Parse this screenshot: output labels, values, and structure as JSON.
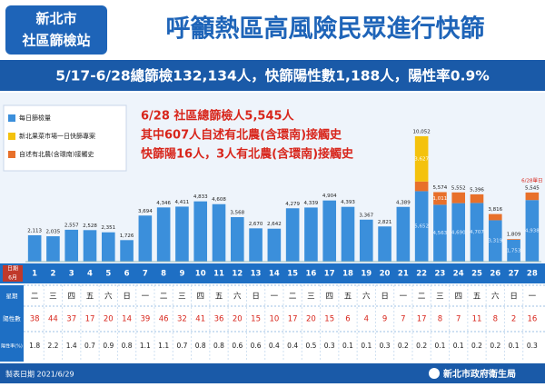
{
  "chart_data": {
    "type": "bar",
    "logo": [
      "新北市",
      "社區篩檢站"
    ],
    "title": "呼籲熱區高風險民眾進行快篩",
    "subtitle": "5/17-6/28總篩檢132,134人，快篩陽性數1,188人，陽性率0.9%",
    "annotations": [
      "6/28 社區總篩檢人5,545人",
      "其中607人自述有北農(含環南)接觸史",
      "快篩陽16人，3人有北農(含環南)接觸史"
    ],
    "last_day_note": "6/28單日",
    "month": "6月",
    "row_labels": [
      "日期",
      "星期",
      "陽性數",
      "陽性率(%)"
    ],
    "categories": [
      "1",
      "2",
      "3",
      "4",
      "5",
      "6",
      "7",
      "8",
      "9",
      "10",
      "11",
      "12",
      "13",
      "14",
      "15",
      "16",
      "17",
      "18",
      "19",
      "20",
      "21",
      "22",
      "23",
      "24",
      "25",
      "26",
      "27",
      "28"
    ],
    "weekdays": [
      "二",
      "三",
      "四",
      "五",
      "六",
      "日",
      "一",
      "二",
      "三",
      "四",
      "五",
      "六",
      "日",
      "一",
      "二",
      "三",
      "四",
      "五",
      "六",
      "日",
      "一",
      "二",
      "三",
      "四",
      "五",
      "六",
      "日",
      "一"
    ],
    "positives": [
      38,
      44,
      37,
      17,
      20,
      14,
      39,
      46,
      32,
      41,
      36,
      20,
      15,
      10,
      17,
      20,
      15,
      6,
      4,
      9,
      7,
      17,
      8,
      7,
      11,
      8,
      2,
      16
    ],
    "rates": [
      1.8,
      2.2,
      1.4,
      0.7,
      0.9,
      0.8,
      1.1,
      1.1,
      0.7,
      0.8,
      0.8,
      0.6,
      0.6,
      0.4,
      0.4,
      0.5,
      0.3,
      0.1,
      0.1,
      0.3,
      0.2,
      0.2,
      0.1,
      0.1,
      0.2,
      0.2,
      0.1,
      0.3
    ],
    "series": [
      {
        "name": "每日篩檢量",
        "color": "#3b8fdb",
        "values": [
          2113,
          2035,
          2557,
          2528,
          2351,
          1726,
          3694,
          4346,
          4411,
          4833,
          4608,
          3568,
          2670,
          2642,
          4279,
          4339,
          4904,
          4393,
          3367,
          2821,
          4389,
          5652,
          4563,
          4690,
          4707,
          3319,
          1753,
          4938
        ],
        "value_labels": [
          null,
          null,
          null,
          null,
          null,
          null,
          null,
          null,
          null,
          null,
          null,
          null,
          null,
          null,
          null,
          null,
          null,
          null,
          null,
          null,
          null,
          "5,652",
          "4,563",
          "4,690",
          "4,707",
          "3,319",
          "1,753",
          "4,938"
        ]
      },
      {
        "name": "新北果菜市場一日快篩專案",
        "color": "#f4c20d",
        "values": [
          null,
          null,
          null,
          null,
          null,
          null,
          null,
          null,
          null,
          null,
          null,
          null,
          null,
          null,
          null,
          null,
          null,
          null,
          null,
          null,
          null,
          3627,
          null,
          null,
          null,
          null,
          null,
          null
        ],
        "value_labels": [
          null,
          null,
          null,
          null,
          null,
          null,
          null,
          null,
          null,
          null,
          null,
          null,
          null,
          null,
          null,
          null,
          null,
          null,
          null,
          null,
          null,
          "3,627",
          null,
          null,
          null,
          null,
          null,
          null
        ]
      },
      {
        "name": "自述有北農(含環南)接觸史",
        "color": "#e8702a",
        "values": [
          null,
          null,
          null,
          null,
          null,
          null,
          null,
          null,
          null,
          null,
          null,
          null,
          null,
          null,
          null,
          null,
          null,
          null,
          null,
          null,
          null,
          773,
          1011,
          862,
          689,
          497,
          56,
          607
        ],
        "value_labels": [
          null,
          null,
          null,
          null,
          null,
          null,
          null,
          null,
          null,
          null,
          null,
          null,
          null,
          null,
          null,
          null,
          null,
          null,
          null,
          null,
          null,
          null,
          "1,011",
          null,
          null,
          null,
          null,
          null
        ]
      }
    ],
    "stack_order": [
      0,
      2,
      1
    ],
    "totals": {
      "values": [
        2113,
        2035,
        2557,
        2528,
        2351,
        1726,
        3694,
        4346,
        4411,
        4833,
        4608,
        3568,
        2670,
        2642,
        4279,
        4339,
        4904,
        4393,
        3367,
        2821,
        4389,
        10052,
        5574,
        5552,
        5396,
        3816,
        1809,
        5545
      ],
      "value_labels": [
        "2,113",
        "2,035",
        "2,557",
        "2,528",
        "2,351",
        "1,726",
        "3,694",
        "4,346",
        "4,411",
        "4,833",
        "4,608",
        "3,568",
        "2,670",
        "2,642",
        "4,279",
        "4,339",
        "4,904",
        "4,393",
        "3,367",
        "2,821",
        "4,389",
        "10,052",
        "5,574",
        "5,552",
        "5,396",
        "3,816",
        "1,809",
        "5,545"
      ]
    },
    "ylim": [
      0,
      11000
    ],
    "footer_date": "製表日期 2021/6/29",
    "source": "新北市政府衛生局"
  }
}
